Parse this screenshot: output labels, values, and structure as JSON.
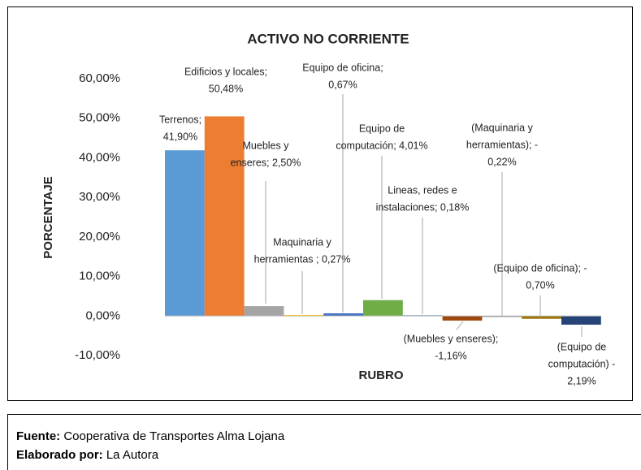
{
  "chart_data": {
    "type": "bar",
    "title": "ACTIVO NO CORRIENTE",
    "x_label": "RUBRO",
    "y_label": "PORCENTAJE",
    "values": [
      41.9,
      50.48,
      2.5,
      0.27,
      0.67,
      4.01,
      0.18,
      -1.16,
      -0.22,
      -0.7,
      -2.19
    ],
    "value_labels": [
      [
        "Terrenos;",
        "41,90%"
      ],
      [
        "Edificios y locales;",
        "50,48%"
      ],
      [
        "Muebles y",
        "enseres; 2,50%"
      ],
      [
        "Maquinaria y",
        "herramientas ; 0,27%"
      ],
      [
        "Equipo de oficina;",
        "0,67%"
      ],
      [
        "Equipo de",
        "computación; 4,01%"
      ],
      [
        "Lineas, redes e",
        "instalaciones; 0,18%"
      ],
      [
        "(Muebles y enseres);",
        "-1,16%"
      ],
      [
        "(Maquinaria y",
        "herramientas); -",
        "0,22%"
      ],
      [
        "(Equipo de oficina); -",
        "0,70%"
      ],
      [
        "(Equipo de",
        "computación) -",
        "2,19%"
      ]
    ],
    "colors": [
      "#5b9bd5",
      "#ed7d31",
      "#a5a5a5",
      "#ffc000",
      "#4472c4",
      "#70ad47",
      "#255e91",
      "#9e480e",
      "#636363",
      "#997300",
      "#264478"
    ],
    "ylim": [
      -10,
      60
    ],
    "yticks": [
      {
        "value": -10,
        "label": "-10,00%"
      },
      {
        "value": 0,
        "label": "0,00%"
      },
      {
        "value": 10,
        "label": "10,00%"
      },
      {
        "value": 20,
        "label": "20,00%"
      },
      {
        "value": 30,
        "label": "30,00%"
      },
      {
        "value": 40,
        "label": "40,00%"
      },
      {
        "value": 50,
        "label": "50,00%"
      },
      {
        "value": 60,
        "label": "60,00%"
      }
    ],
    "grid": false
  },
  "footer": {
    "source_label": "Fuente:",
    "source": "Cooperativa de Transportes Alma Lojana",
    "author_label": "Elaborado por:",
    "author": "La Autora"
  }
}
